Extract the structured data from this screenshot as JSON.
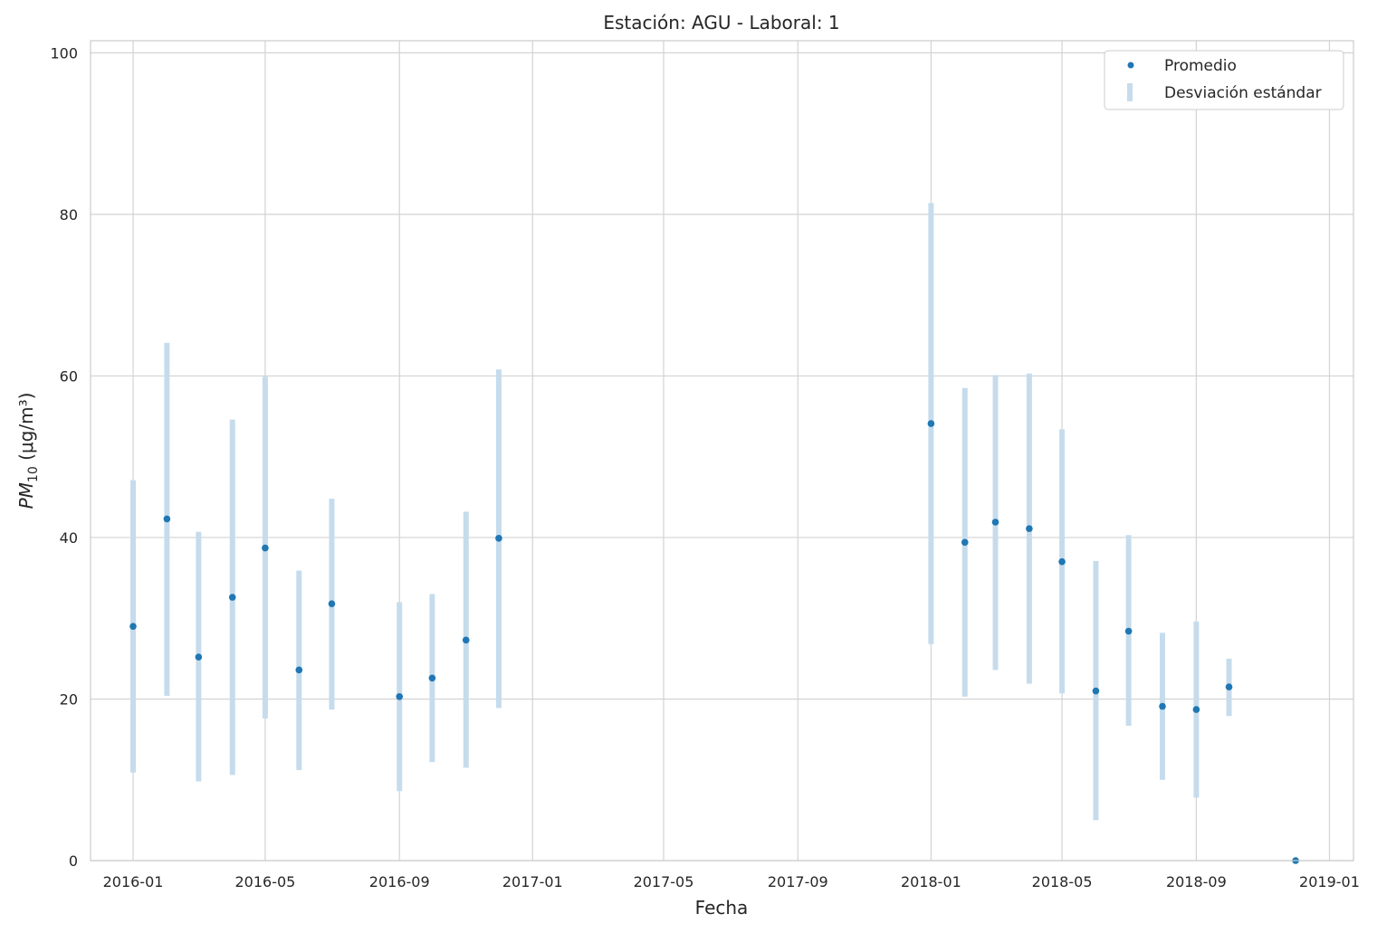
{
  "chart_data": {
    "type": "scatter",
    "title": "Estación: AGU - Laboral: 1",
    "xlabel": "Fecha",
    "ylabel_main": "PM",
    "ylabel_sub": "10",
    "ylabel_unit": " (μg/m³)",
    "xlim": [
      "2015-11-23",
      "2019-01-23"
    ],
    "ylim": [
      0,
      101.5
    ],
    "x_ticks": [
      "2016-01",
      "2016-05",
      "2016-09",
      "2017-01",
      "2017-05",
      "2017-09",
      "2018-01",
      "2018-05",
      "2018-09",
      "2019-01"
    ],
    "y_ticks": [
      0,
      20,
      40,
      60,
      80,
      100
    ],
    "grid": true,
    "legend_position": "top-right",
    "colors": {
      "mean": "#1f77b4",
      "std": "#c6dcec",
      "grid": "#d3d3d3",
      "spine": "#cccccc"
    },
    "series": [
      {
        "name": "Promedio",
        "marker": "point",
        "x": [
          "2016-01-01",
          "2016-02-01",
          "2016-03-01",
          "2016-04-01",
          "2016-05-01",
          "2016-06-01",
          "2016-07-01",
          "2016-09-01",
          "2016-10-01",
          "2016-11-01",
          "2016-12-01",
          "2018-01-01",
          "2018-02-01",
          "2018-03-01",
          "2018-04-01",
          "2018-05-01",
          "2018-06-01",
          "2018-07-01",
          "2018-08-01",
          "2018-09-01",
          "2018-10-01",
          "2018-12-01"
        ],
        "y": [
          29.0,
          42.3,
          25.2,
          32.6,
          38.7,
          23.6,
          31.8,
          20.3,
          22.6,
          27.3,
          39.9,
          54.1,
          39.4,
          41.9,
          41.1,
          37.0,
          21.0,
          28.4,
          19.1,
          18.7,
          21.5,
          0.0
        ]
      },
      {
        "name": "Desviación estándar",
        "marker": "bar",
        "x": [
          "2016-01-01",
          "2016-02-01",
          "2016-03-01",
          "2016-04-01",
          "2016-05-01",
          "2016-06-01",
          "2016-07-01",
          "2016-09-01",
          "2016-10-01",
          "2016-11-01",
          "2016-12-01",
          "2018-01-01",
          "2018-02-01",
          "2018-03-01",
          "2018-04-01",
          "2018-05-01",
          "2018-06-01",
          "2018-07-01",
          "2018-08-01",
          "2018-09-01",
          "2018-10-01"
        ],
        "low": [
          10.9,
          20.4,
          9.8,
          10.6,
          17.6,
          11.2,
          18.7,
          8.6,
          12.2,
          11.5,
          18.9,
          26.8,
          20.3,
          23.6,
          21.9,
          20.7,
          5.0,
          16.7,
          10.0,
          7.8,
          17.9
        ],
        "high": [
          47.1,
          64.1,
          40.7,
          54.6,
          59.9,
          35.9,
          44.8,
          32.0,
          33.0,
          43.2,
          60.8,
          81.4,
          58.5,
          60.1,
          60.3,
          53.4,
          37.1,
          40.3,
          28.2,
          29.6,
          25.0
        ]
      }
    ]
  }
}
